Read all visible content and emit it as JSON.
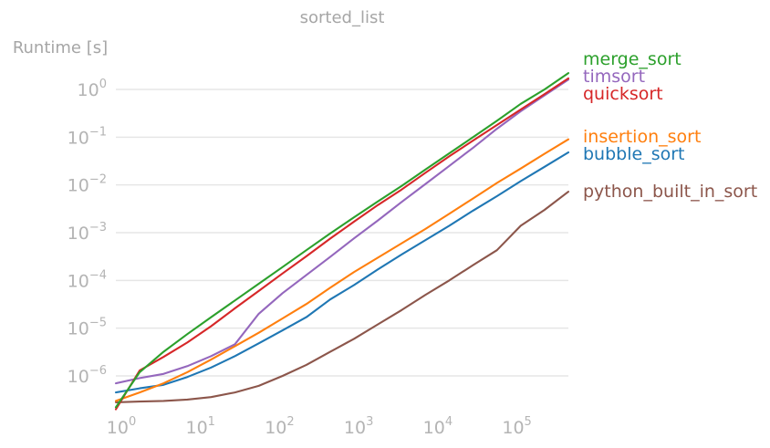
{
  "chart_data": {
    "type": "line",
    "title": "sorted_list",
    "xlabel": "",
    "ylabel": "Runtime [s]",
    "x_scale": "log",
    "y_scale": "log",
    "xlim": [
      1,
      524288
    ],
    "ylim": [
      2e-07,
      3
    ],
    "grid": "horizontal",
    "legend_placement": "right, beside line ends",
    "x_ticks": [
      {
        "base": "10",
        "exp": "0",
        "value": 1
      },
      {
        "base": "10",
        "exp": "1",
        "value": 10
      },
      {
        "base": "10",
        "exp": "2",
        "value": 100
      },
      {
        "base": "10",
        "exp": "3",
        "value": 1000
      },
      {
        "base": "10",
        "exp": "4",
        "value": 10000
      },
      {
        "base": "10",
        "exp": "5",
        "value": 100000
      }
    ],
    "y_ticks": [
      {
        "base": "10",
        "exp": "0",
        "value": 1
      },
      {
        "base": "10",
        "exp": "−1",
        "value": 0.1
      },
      {
        "base": "10",
        "exp": "−2",
        "value": 0.01
      },
      {
        "base": "10",
        "exp": "−3",
        "value": 0.001
      },
      {
        "base": "10",
        "exp": "−4",
        "value": 0.0001
      },
      {
        "base": "10",
        "exp": "−5",
        "value": 1e-05
      },
      {
        "base": "10",
        "exp": "−6",
        "value": 1e-06
      }
    ],
    "series": [
      {
        "name": "merge_sort",
        "color": "#2ca02c",
        "x": [
          1,
          2,
          4,
          8,
          16,
          32,
          64,
          128,
          256,
          512,
          1024,
          2048,
          4096,
          8192,
          16384,
          32768,
          65536,
          131072,
          262144,
          524288
        ],
        "y": [
          2.2e-07,
          1.2e-06,
          3.2e-06,
          7.5e-06,
          1.7e-05,
          3.8e-05,
          8.5e-05,
          0.00019,
          0.00043,
          0.00096,
          0.0021,
          0.0045,
          0.0095,
          0.021,
          0.046,
          0.1,
          0.22,
          0.5,
          1.0,
          2.2
        ]
      },
      {
        "name": "timsort",
        "color": "#9467bd",
        "x": [
          1,
          2,
          4,
          8,
          16,
          32,
          64,
          128,
          256,
          512,
          1024,
          2048,
          4096,
          8192,
          16384,
          32768,
          65536,
          131072,
          262144,
          524288
        ],
        "y": [
          7e-07,
          9e-07,
          1.1e-06,
          1.6e-06,
          2.6e-06,
          4.6e-06,
          2e-05,
          5.4e-05,
          0.00013,
          0.00031,
          0.00076,
          0.0018,
          0.0044,
          0.0105,
          0.025,
          0.06,
          0.15,
          0.35,
          0.75,
          1.6
        ]
      },
      {
        "name": "quicksort",
        "color": "#d62728",
        "x": [
          1,
          2,
          4,
          8,
          16,
          32,
          64,
          128,
          256,
          512,
          1024,
          2048,
          4096,
          8192,
          16384,
          32768,
          65536,
          131072,
          262144,
          524288
        ],
        "y": [
          2e-07,
          1.3e-06,
          2.5e-06,
          5e-06,
          1.1e-05,
          2.6e-05,
          6e-05,
          0.00014,
          0.00032,
          0.00075,
          0.0017,
          0.0038,
          0.008,
          0.018,
          0.04,
          0.085,
          0.18,
          0.38,
          0.8,
          1.7
        ]
      },
      {
        "name": "insertion_sort",
        "color": "#ff7f0e",
        "x": [
          1,
          2,
          4,
          8,
          16,
          32,
          64,
          128,
          256,
          512,
          1024,
          2048,
          4096,
          8192,
          16384,
          32768,
          65536,
          131072,
          262144,
          524288
        ],
        "y": [
          3e-07,
          4.5e-07,
          7e-07,
          1.2e-06,
          2.2e-06,
          4.2e-06,
          8e-06,
          1.6e-05,
          3.2e-05,
          7e-05,
          0.00015,
          0.0003,
          0.0006,
          0.0012,
          0.0025,
          0.0052,
          0.011,
          0.022,
          0.045,
          0.09
        ]
      },
      {
        "name": "bubble_sort",
        "color": "#1f77b4",
        "x": [
          1,
          2,
          4,
          8,
          16,
          32,
          64,
          128,
          256,
          512,
          1024,
          2048,
          4096,
          8192,
          16384,
          32768,
          65536,
          131072,
          262144,
          524288
        ],
        "y": [
          4.5e-07,
          5.5e-07,
          6.5e-07,
          9.5e-07,
          1.5e-06,
          2.6e-06,
          4.8e-06,
          9e-06,
          1.7e-05,
          4e-05,
          8e-05,
          0.00017,
          0.00035,
          0.0007,
          0.0014,
          0.0029,
          0.0058,
          0.012,
          0.024,
          0.048
        ]
      },
      {
        "name": "python_built_in_sort",
        "color": "#8c564b",
        "x": [
          1,
          2,
          4,
          8,
          16,
          32,
          64,
          128,
          256,
          512,
          1024,
          2048,
          4096,
          8192,
          16384,
          32768,
          65536,
          131072,
          262144,
          524288
        ],
        "y": [
          2.8e-07,
          2.9e-07,
          3e-07,
          3.2e-07,
          3.6e-07,
          4.5e-07,
          6.2e-07,
          1e-06,
          1.7e-06,
          3.2e-06,
          6e-06,
          1.2e-05,
          2.4e-05,
          5e-05,
          0.0001,
          0.00021,
          0.00043,
          0.0014,
          0.003,
          0.0072
        ]
      }
    ]
  }
}
